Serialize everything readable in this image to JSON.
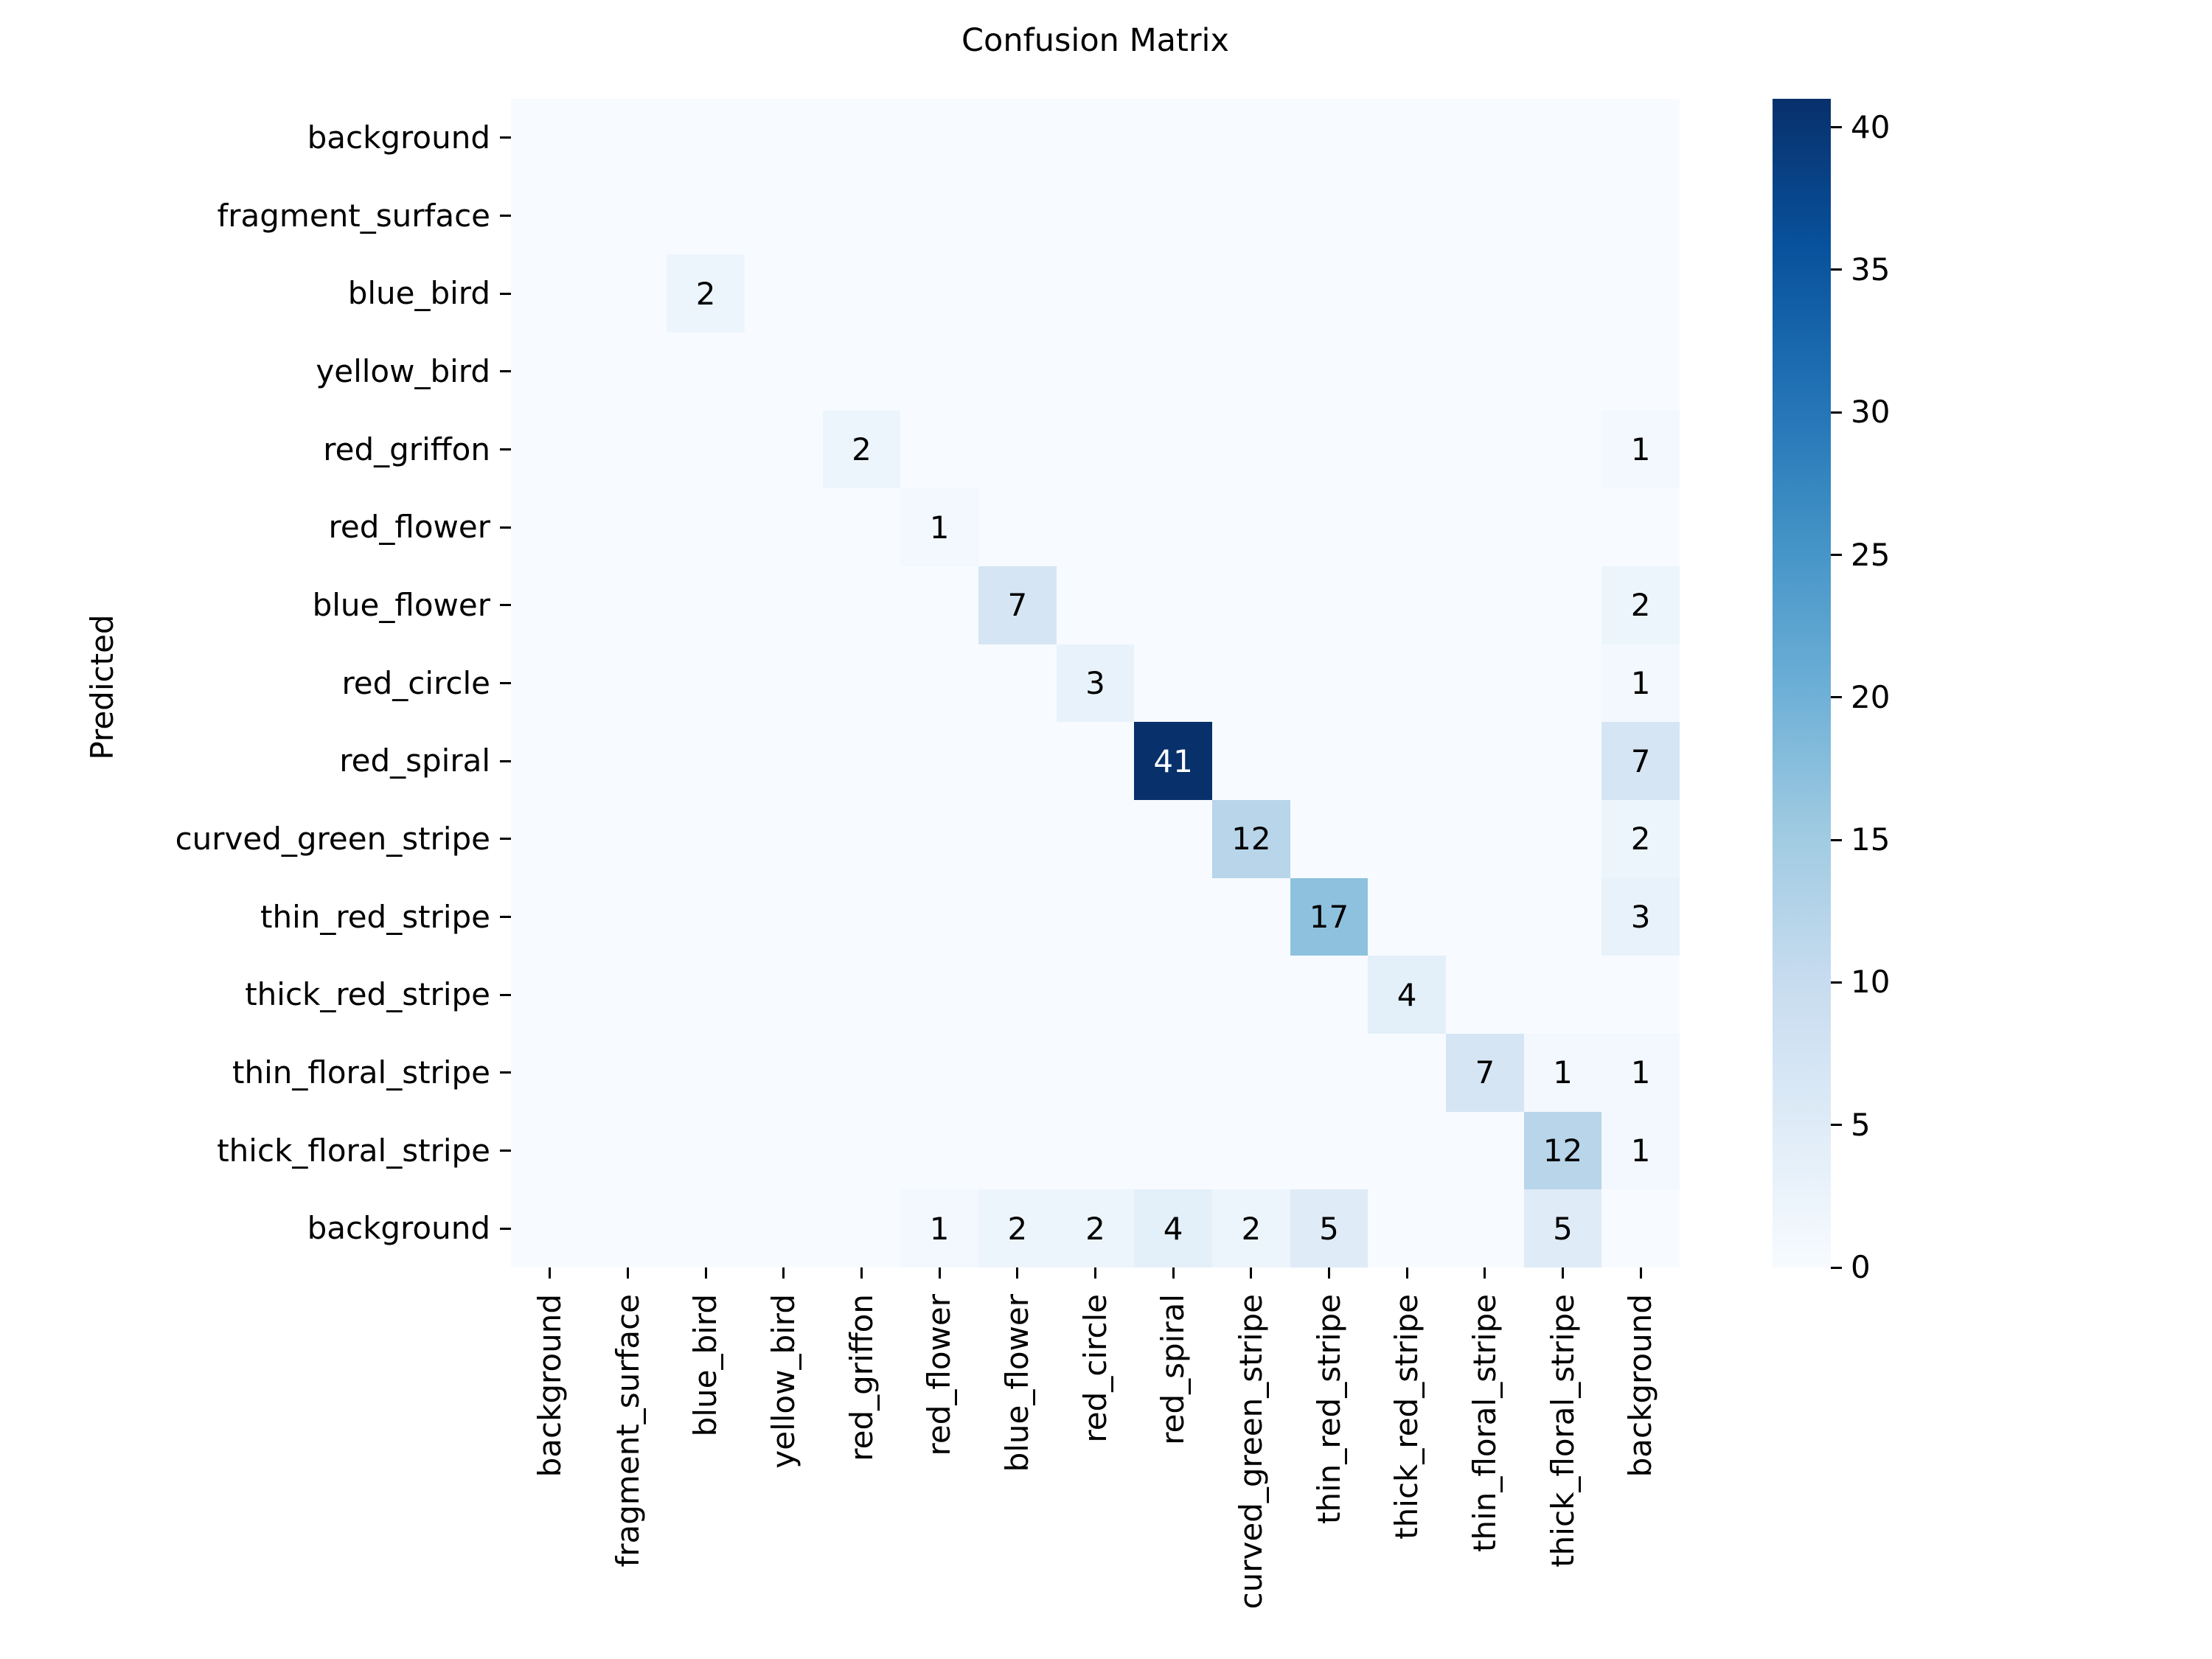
{
  "figure": {
    "background": "#ffffff"
  },
  "chart_data": {
    "type": "heatmap",
    "title": "Confusion Matrix",
    "xlabel": "",
    "ylabel": "Predicted",
    "x_categories": [
      "background",
      "fragment_surface",
      "blue_bird",
      "yellow_bird",
      "red_griffon",
      "red_flower",
      "blue_flower",
      "red_circle",
      "red_spiral",
      "curved_green_stripe",
      "thin_red_stripe",
      "thick_red_stripe",
      "thin_floral_stripe",
      "thick_floral_stripe",
      "background"
    ],
    "y_categories": [
      "background",
      "fragment_surface",
      "blue_bird",
      "yellow_bird",
      "red_griffon",
      "red_flower",
      "blue_flower",
      "red_circle",
      "red_spiral",
      "curved_green_stripe",
      "thin_red_stripe",
      "thick_red_stripe",
      "thin_floral_stripe",
      "thick_floral_stripe",
      "background"
    ],
    "matrix": [
      [
        0,
        0,
        0,
        0,
        0,
        0,
        0,
        0,
        0,
        0,
        0,
        0,
        0,
        0,
        0
      ],
      [
        0,
        0,
        0,
        0,
        0,
        0,
        0,
        0,
        0,
        0,
        0,
        0,
        0,
        0,
        0
      ],
      [
        0,
        0,
        2,
        0,
        0,
        0,
        0,
        0,
        0,
        0,
        0,
        0,
        0,
        0,
        0
      ],
      [
        0,
        0,
        0,
        0,
        0,
        0,
        0,
        0,
        0,
        0,
        0,
        0,
        0,
        0,
        0
      ],
      [
        0,
        0,
        0,
        0,
        2,
        0,
        0,
        0,
        0,
        0,
        0,
        0,
        0,
        0,
        1
      ],
      [
        0,
        0,
        0,
        0,
        0,
        1,
        0,
        0,
        0,
        0,
        0,
        0,
        0,
        0,
        0
      ],
      [
        0,
        0,
        0,
        0,
        0,
        0,
        7,
        0,
        0,
        0,
        0,
        0,
        0,
        0,
        2
      ],
      [
        0,
        0,
        0,
        0,
        0,
        0,
        0,
        3,
        0,
        0,
        0,
        0,
        0,
        0,
        1
      ],
      [
        0,
        0,
        0,
        0,
        0,
        0,
        0,
        0,
        41,
        0,
        0,
        0,
        0,
        0,
        7
      ],
      [
        0,
        0,
        0,
        0,
        0,
        0,
        0,
        0,
        0,
        12,
        0,
        0,
        0,
        0,
        2
      ],
      [
        0,
        0,
        0,
        0,
        0,
        0,
        0,
        0,
        0,
        0,
        17,
        0,
        0,
        0,
        3
      ],
      [
        0,
        0,
        0,
        0,
        0,
        0,
        0,
        0,
        0,
        0,
        0,
        4,
        0,
        0,
        0
      ],
      [
        0,
        0,
        0,
        0,
        0,
        0,
        0,
        0,
        0,
        0,
        0,
        0,
        7,
        1,
        1
      ],
      [
        0,
        0,
        0,
        0,
        0,
        0,
        0,
        0,
        0,
        0,
        0,
        0,
        0,
        12,
        1
      ],
      [
        0,
        0,
        0,
        0,
        0,
        1,
        2,
        2,
        4,
        2,
        5,
        0,
        0,
        5,
        0
      ]
    ],
    "vmin": 0,
    "vmax": 41,
    "colormap": "Blues",
    "colorbar_ticks": [
      0,
      5,
      10,
      15,
      20,
      25,
      30,
      35,
      40
    ],
    "annotation_rule": "only nonzero cells are annotated; text turns white above half of vmax",
    "grid": false,
    "legend_position": "colorbar-right",
    "colors": {
      "cmap_stops": [
        "#f7fbff",
        "#deebf7",
        "#c6dbef",
        "#9ecae1",
        "#6baed6",
        "#4292c6",
        "#2171b5",
        "#08519c",
        "#08306b"
      ],
      "annotation_dark_text": "#000000",
      "annotation_light_text": "#ffffff",
      "tick_color": "#000000",
      "text_color": "#000000"
    }
  }
}
